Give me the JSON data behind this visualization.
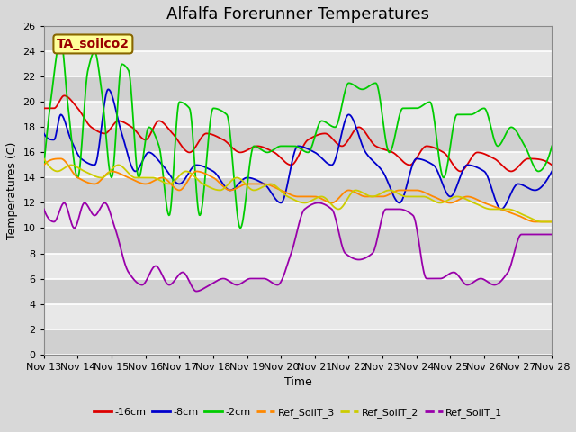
{
  "title": "Alfalfa Forerunner Temperatures",
  "xlabel": "Time",
  "ylabel": "Temperatures (C)",
  "annotation": "TA_soilco2",
  "ylim": [
    0,
    26
  ],
  "yticks": [
    0,
    2,
    4,
    6,
    8,
    10,
    12,
    14,
    16,
    18,
    20,
    22,
    24,
    26
  ],
  "xtick_labels": [
    "Nov 13",
    "Nov 14",
    "Nov 15",
    "Nov 16",
    "Nov 17",
    "Nov 18",
    "Nov 19",
    "Nov 20",
    "Nov 21",
    "Nov 22",
    "Nov 23",
    "Nov 24",
    "Nov 25",
    "Nov 26",
    "Nov 27",
    "Nov 28"
  ],
  "series_colors": {
    "-16cm": "#dd0000",
    "-8cm": "#0000cc",
    "-2cm": "#00cc00",
    "Ref_SoilT_3": "#ff8800",
    "Ref_SoilT_2": "#cccc00",
    "Ref_SoilT_1": "#9900aa"
  },
  "plot_bg_color": "#e8e8e8",
  "grid_color": "#ffffff",
  "title_fontsize": 13,
  "axis_fontsize": 9,
  "tick_fontsize": 8,
  "annotation_box_color": "#ffff99",
  "annotation_text_color": "#990000",
  "annotation_edge_color": "#886600"
}
